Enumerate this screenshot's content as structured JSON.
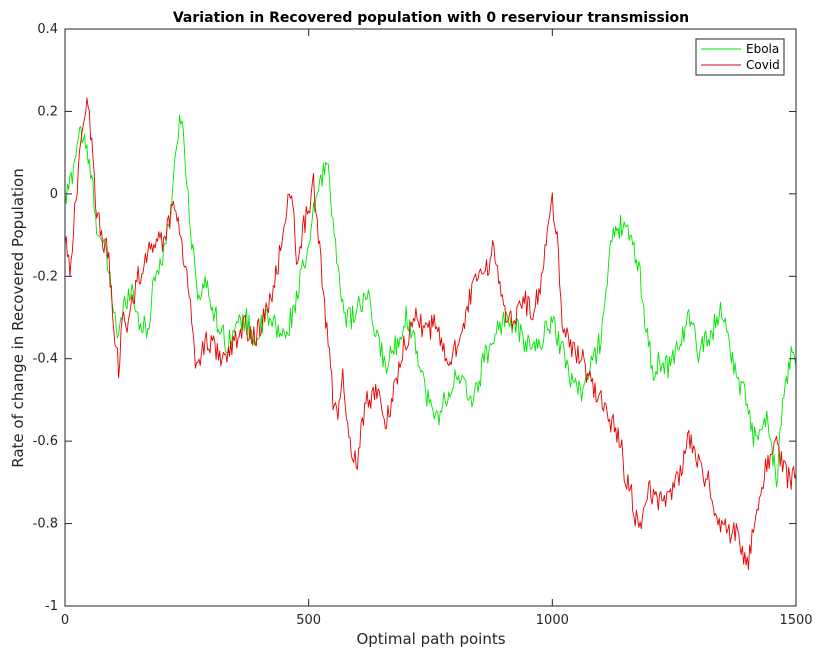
{
  "chart_data": {
    "type": "line",
    "title": "Variation in Recovered population with 0 reserviour transmission",
    "xlabel": "Optimal path points",
    "ylabel": "Rate of change in Recovered Population",
    "xlim": [
      0,
      1500
    ],
    "ylim": [
      -1,
      0.4
    ],
    "xticks": [
      0,
      500,
      1000,
      1500
    ],
    "xtick_labels": [
      "0",
      "500",
      "1000",
      "1500"
    ],
    "yticks": [
      -1,
      -0.8,
      -0.6,
      -0.4,
      -0.2,
      0,
      0.2,
      0.4
    ],
    "ytick_labels": [
      "-1",
      "-0.8",
      "-0.6",
      "-0.4",
      "-0.2",
      "0",
      "0.2",
      "0.4"
    ],
    "grid": false,
    "legend_position": "top-right",
    "series": [
      {
        "name": "Ebola",
        "color": "#00e600",
        "x": [
          0,
          15,
          30,
          45,
          55,
          65,
          75,
          85,
          100,
          110,
          120,
          135,
          150,
          170,
          180,
          200,
          210,
          225,
          235,
          245,
          255,
          265,
          275,
          290,
          310,
          330,
          350,
          370,
          390,
          410,
          430,
          450,
          470,
          480,
          490,
          500,
          510,
          520,
          540,
          550,
          560,
          570,
          580,
          600,
          620,
          640,
          660,
          680,
          700,
          720,
          740,
          760,
          780,
          800,
          820,
          840,
          860,
          880,
          900,
          920,
          940,
          960,
          980,
          1000,
          1020,
          1040,
          1060,
          1080,
          1100,
          1110,
          1120,
          1140,
          1150,
          1160,
          1170,
          1180,
          1190,
          1200,
          1210,
          1220,
          1240,
          1260,
          1280,
          1300,
          1320,
          1340,
          1350,
          1360,
          1380,
          1400,
          1410,
          1420,
          1440,
          1450,
          1460,
          1470,
          1480,
          1490,
          1500
        ],
        "y": [
          -0.02,
          0.05,
          0.16,
          0.1,
          0.03,
          -0.07,
          -0.12,
          -0.15,
          -0.28,
          -0.35,
          -0.28,
          -0.22,
          -0.3,
          -0.34,
          -0.22,
          -0.15,
          -0.1,
          0.05,
          0.2,
          0.12,
          -0.05,
          -0.16,
          -0.25,
          -0.22,
          -0.3,
          -0.36,
          -0.33,
          -0.3,
          -0.36,
          -0.3,
          -0.32,
          -0.35,
          -0.28,
          -0.22,
          -0.18,
          -0.14,
          -0.05,
          0.02,
          0.08,
          -0.06,
          -0.2,
          -0.25,
          -0.31,
          -0.28,
          -0.25,
          -0.35,
          -0.42,
          -0.36,
          -0.3,
          -0.36,
          -0.48,
          -0.55,
          -0.5,
          -0.45,
          -0.47,
          -0.5,
          -0.4,
          -0.35,
          -0.3,
          -0.32,
          -0.35,
          -0.38,
          -0.35,
          -0.3,
          -0.38,
          -0.45,
          -0.48,
          -0.42,
          -0.35,
          -0.22,
          -0.12,
          -0.08,
          -0.06,
          -0.12,
          -0.15,
          -0.2,
          -0.3,
          -0.38,
          -0.45,
          -0.4,
          -0.42,
          -0.36,
          -0.3,
          -0.38,
          -0.35,
          -0.3,
          -0.28,
          -0.35,
          -0.45,
          -0.5,
          -0.58,
          -0.6,
          -0.55,
          -0.62,
          -0.7,
          -0.55,
          -0.45,
          -0.4,
          -0.42
        ]
      },
      {
        "name": "Covid",
        "color": "#e60000",
        "x": [
          0,
          10,
          20,
          30,
          40,
          45,
          55,
          65,
          75,
          90,
          100,
          110,
          120,
          130,
          140,
          150,
          160,
          170,
          180,
          190,
          200,
          210,
          220,
          230,
          240,
          250,
          260,
          270,
          280,
          290,
          310,
          330,
          350,
          370,
          390,
          410,
          430,
          445,
          455,
          465,
          475,
          490,
          500,
          510,
          520,
          530,
          540,
          550,
          560,
          570,
          580,
          590,
          600,
          610,
          620,
          640,
          660,
          680,
          700,
          720,
          740,
          760,
          780,
          800,
          820,
          840,
          860,
          880,
          900,
          920,
          940,
          960,
          980,
          990,
          1000,
          1010,
          1020,
          1040,
          1060,
          1080,
          1100,
          1120,
          1140,
          1150,
          1160,
          1170,
          1180,
          1200,
          1220,
          1240,
          1260,
          1280,
          1300,
          1320,
          1340,
          1360,
          1380,
          1390,
          1400,
          1410,
          1420,
          1440,
          1460,
          1470,
          1480,
          1490,
          1500
        ],
        "y": [
          -0.1,
          -0.18,
          -0.05,
          0.08,
          0.2,
          0.25,
          0.12,
          -0.05,
          -0.1,
          -0.15,
          -0.35,
          -0.42,
          -0.3,
          -0.32,
          -0.25,
          -0.2,
          -0.18,
          -0.15,
          -0.12,
          -0.1,
          -0.12,
          -0.08,
          -0.03,
          -0.05,
          -0.12,
          -0.2,
          -0.3,
          -0.43,
          -0.38,
          -0.35,
          -0.38,
          -0.4,
          -0.36,
          -0.32,
          -0.35,
          -0.3,
          -0.22,
          -0.12,
          -0.02,
          0.0,
          -0.15,
          -0.08,
          -0.03,
          0.02,
          -0.1,
          -0.25,
          -0.35,
          -0.5,
          -0.55,
          -0.45,
          -0.58,
          -0.62,
          -0.65,
          -0.55,
          -0.5,
          -0.48,
          -0.55,
          -0.45,
          -0.35,
          -0.3,
          -0.33,
          -0.32,
          -0.4,
          -0.38,
          -0.3,
          -0.22,
          -0.2,
          -0.13,
          -0.28,
          -0.3,
          -0.25,
          -0.3,
          -0.2,
          -0.1,
          -0.02,
          -0.1,
          -0.3,
          -0.38,
          -0.4,
          -0.46,
          -0.5,
          -0.55,
          -0.6,
          -0.7,
          -0.72,
          -0.78,
          -0.8,
          -0.72,
          -0.74,
          -0.73,
          -0.68,
          -0.6,
          -0.65,
          -0.7,
          -0.8,
          -0.82,
          -0.82,
          -0.86,
          -0.9,
          -0.84,
          -0.75,
          -0.66,
          -0.6,
          -0.65,
          -0.68,
          -0.7,
          -0.68
        ]
      }
    ]
  }
}
